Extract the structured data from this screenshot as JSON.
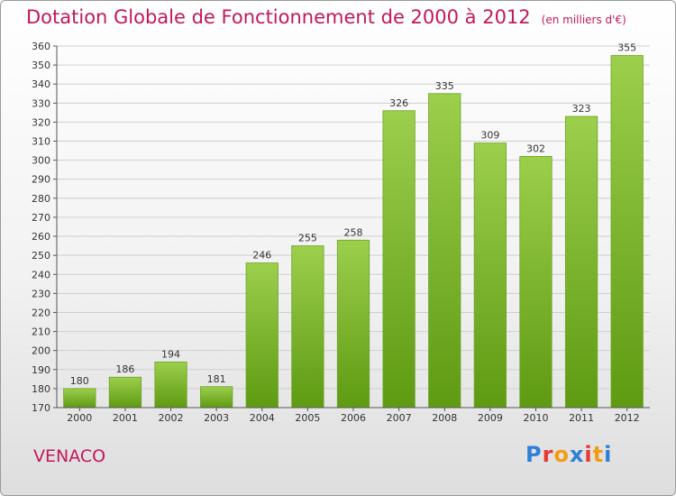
{
  "header": {
    "title": "Dotation Globale de Fonctionnement de 2000 à 2012",
    "unit": "(en milliers d'€)"
  },
  "footer": {
    "town": "VENACO",
    "logo": "Proxiti"
  },
  "colors": {
    "title": "#c2185b",
    "bar_top": "#9ccf4c",
    "bar_bottom": "#5e9a12",
    "grid": "#cfcfcf",
    "logo_letters": [
      "#2f7fd6",
      "#e53935",
      "#f39c12",
      "#2f7fd6",
      "#e53935",
      "#f39c12",
      "#2f7fd6"
    ]
  },
  "chart_data": {
    "type": "bar",
    "title": "Dotation Globale de Fonctionnement de 2000 à 2012",
    "subtitle": "(en milliers d'€)",
    "xlabel": "",
    "ylabel": "",
    "categories": [
      "2000",
      "2001",
      "2002",
      "2003",
      "2004",
      "2005",
      "2006",
      "2007",
      "2008",
      "2009",
      "2010",
      "2011",
      "2012"
    ],
    "values": [
      180,
      186,
      194,
      181,
      246,
      255,
      258,
      326,
      335,
      309,
      302,
      323,
      355
    ],
    "ylim": [
      170,
      360
    ],
    "ytick_step": 10,
    "grid": true,
    "data_labels": true
  }
}
